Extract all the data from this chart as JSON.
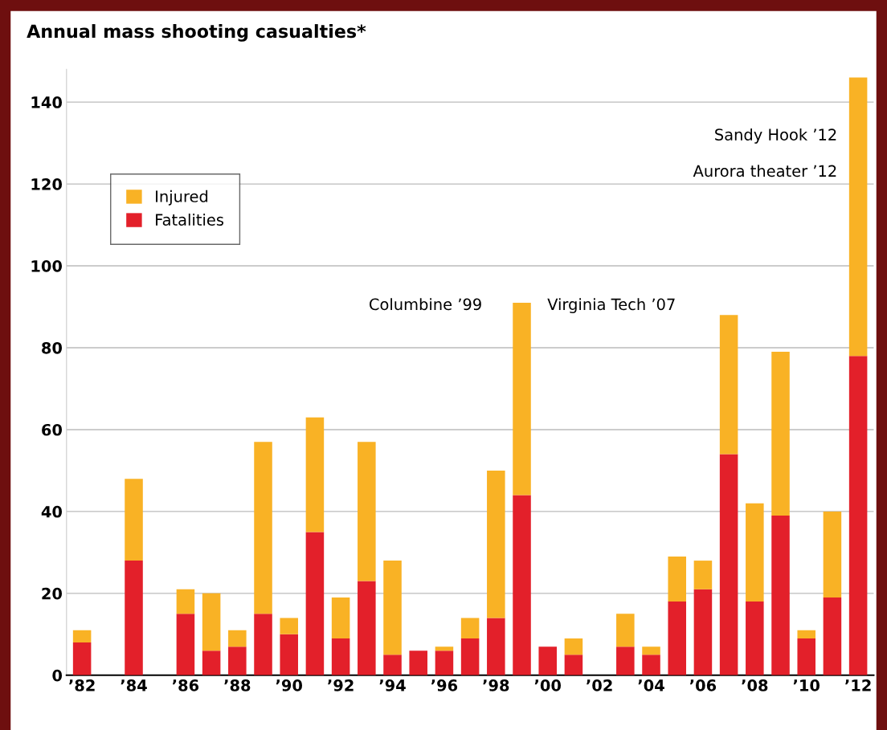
{
  "chart_data": {
    "type": "bar",
    "title": "Annual mass shooting casualties*",
    "stacked": true,
    "categories": [
      "’82",
      null,
      "’84",
      null,
      "’86",
      null,
      "’88",
      null,
      "’90",
      null,
      "’92",
      null,
      "’94",
      null,
      "’96",
      null,
      "’98",
      null,
      "’00",
      null,
      "’02",
      null,
      "’04",
      null,
      "’06",
      null,
      "’08",
      null,
      "’10",
      null,
      "’12"
    ],
    "series": [
      {
        "name": "Fatalities",
        "color": "#e3202a",
        "values": [
          8,
          0,
          28,
          0,
          15,
          6,
          7,
          15,
          10,
          35,
          9,
          23,
          5,
          6,
          6,
          9,
          14,
          44,
          7,
          5,
          0,
          7,
          5,
          18,
          21,
          54,
          18,
          39,
          9,
          19,
          78
        ]
      },
      {
        "name": "Injured",
        "color": "#f9b225",
        "values": [
          3,
          0,
          20,
          0,
          6,
          14,
          4,
          42,
          4,
          28,
          10,
          34,
          23,
          0,
          1,
          5,
          36,
          47,
          0,
          4,
          0,
          8,
          2,
          11,
          7,
          34,
          24,
          40,
          2,
          21,
          68
        ]
      }
    ],
    "ylim": [
      0,
      148
    ],
    "yticks": [
      0,
      20,
      40,
      60,
      80,
      100,
      120,
      140
    ],
    "grid": "y",
    "legend": "top left",
    "annotations": [
      "Columbine ’99",
      "Virginia Tech ’07",
      "Sandy Hook ’12",
      "Aurora theater ’12"
    ]
  }
}
